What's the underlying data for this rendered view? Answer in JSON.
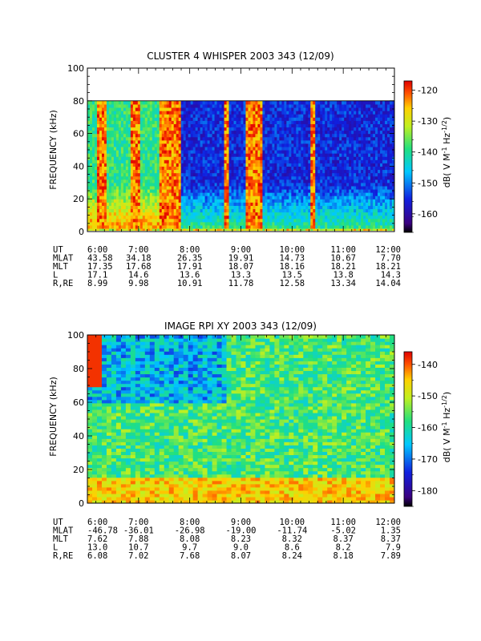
{
  "chart_data": [
    {
      "type": "heatmap",
      "title": "CLUSTER 4 WHISPER 2003 343 (12/09)",
      "ylabel": "FREQUENCY (kHz)",
      "ylim": [
        0,
        100
      ],
      "yticks": [
        "0",
        "20",
        "40",
        "60",
        "80",
        "100"
      ],
      "data_upper_khz": 80,
      "colorbar": {
        "label_main": "dB( V M",
        "label_sup1": "-1",
        "label_mid": " Hz",
        "label_sup2": "-1/2",
        "label_end": ")",
        "ticks": [
          "-120",
          "-130",
          "-140",
          "-150",
          "-160"
        ],
        "range": [
          -166,
          -117
        ]
      },
      "ephemeris": {
        "rows": [
          {
            "label": "UT",
            "values": [
              "6:00",
              "7:00",
              "8:00",
              "9:00",
              "10:00",
              "11:00",
              "12:00"
            ]
          },
          {
            "label": "MLAT",
            "values": [
              "43.58",
              "34.18",
              "26.35",
              "19.91",
              "14.73",
              "10.67",
              "7.70"
            ]
          },
          {
            "label": "MLT",
            "values": [
              "17.35",
              "17.68",
              "17.91",
              "18.07",
              "18.16",
              "18.21",
              "18.21"
            ]
          },
          {
            "label": "L",
            "values": [
              "17.1",
              "14.6",
              "13.6",
              "13.3",
              "13.5",
              "13.8",
              "14.3"
            ]
          },
          {
            "label": "R,RE",
            "values": [
              "8.99",
              "9.98",
              "10.91",
              "11.78",
              "12.58",
              "13.34",
              "14.04"
            ]
          }
        ]
      }
    },
    {
      "type": "heatmap",
      "title": "IMAGE RPI XY 2003 343 (12/09)",
      "ylabel": "FREQUENCY (kHz)",
      "ylim": [
        0,
        100
      ],
      "yticks": [
        "0",
        "20",
        "40",
        "60",
        "80",
        "100"
      ],
      "colorbar": {
        "label_main": "dB( V M",
        "label_sup1": "-1",
        "label_mid": " Hz",
        "label_sup2": "-1/2",
        "label_end": ")",
        "ticks": [
          "-140",
          "-150",
          "-160",
          "-170",
          "-180"
        ],
        "range": [
          -185,
          -136
        ]
      },
      "ephemeris": {
        "rows": [
          {
            "label": "UT",
            "values": [
              "6:00",
              "7:00",
              "8:00",
              "9:00",
              "10:00",
              "11:00",
              "12:00"
            ]
          },
          {
            "label": "MLAT",
            "values": [
              "-46.78",
              "-36.01",
              "-26.98",
              "-19.00",
              "-11.74",
              "-5.02",
              "1.35"
            ]
          },
          {
            "label": "MLT",
            "values": [
              "7.62",
              "7.88",
              "8.08",
              "8.23",
              "8.32",
              "8.37",
              "8.37"
            ]
          },
          {
            "label": "L",
            "values": [
              "13.0",
              "10.7",
              "9.7",
              "9.0",
              "8.6",
              "8.2",
              "7.9"
            ]
          },
          {
            "label": "R,RE",
            "values": [
              "6.08",
              "7.02",
              "7.68",
              "8.07",
              "8.24",
              "8.18",
              "7.89"
            ]
          }
        ]
      }
    }
  ]
}
